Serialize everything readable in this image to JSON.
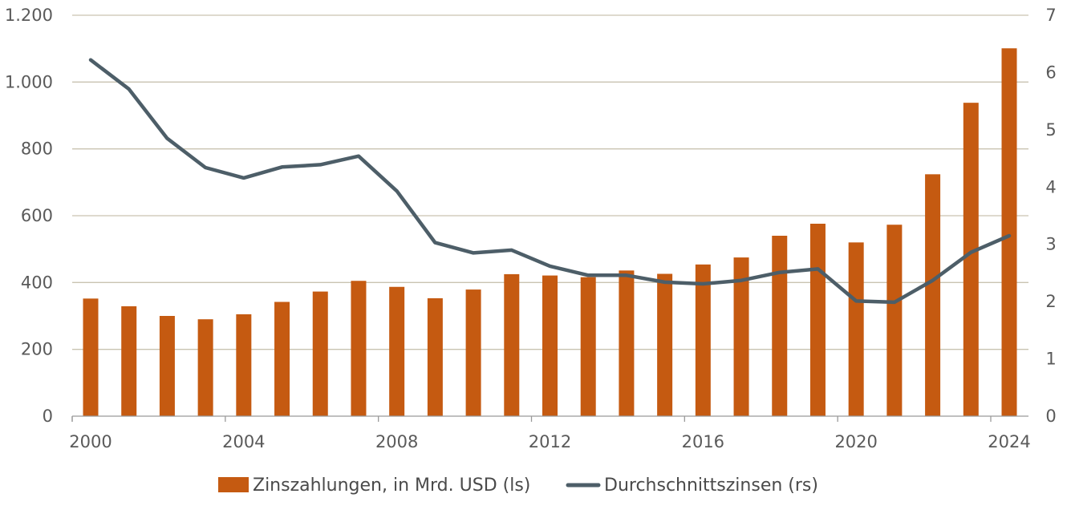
{
  "chart_data": {
    "type": "bar+line",
    "x": [
      2000,
      2001,
      2002,
      2003,
      2004,
      2005,
      2006,
      2007,
      2008,
      2009,
      2010,
      2011,
      2012,
      2013,
      2014,
      2015,
      2016,
      2017,
      2018,
      2019,
      2020,
      2021,
      2022,
      2023,
      2024
    ],
    "x_tick_labels": [
      "2000",
      "2004",
      "2008",
      "2012",
      "2016",
      "2020",
      "2024"
    ],
    "x_tick_values": [
      2000,
      2004,
      2008,
      2012,
      2016,
      2020,
      2024
    ],
    "y_left_tick_labels": [
      "0",
      "200",
      "400",
      "600",
      "800",
      "1.000",
      "1.200"
    ],
    "y_left_tick_values": [
      0,
      200,
      400,
      600,
      800,
      1000,
      1200
    ],
    "y_left_lim": [
      0,
      1200
    ],
    "y_right_tick_labels": [
      "0",
      "1",
      "2",
      "3",
      "4",
      "5",
      "6",
      "7"
    ],
    "y_right_tick_values": [
      0,
      1,
      2,
      3,
      4,
      5,
      6,
      7
    ],
    "y_right_lim": [
      0,
      7
    ],
    "grid": true,
    "legend_position": "bottom",
    "series": [
      {
        "name": "Zinszahlungen, in Mrd. USD (ls)",
        "type": "bar",
        "axis": "left",
        "color": "#c55a11",
        "values": [
          352,
          329,
          300,
          290,
          305,
          342,
          373,
          405,
          387,
          353,
          379,
          425,
          421,
          416,
          436,
          426,
          454,
          475,
          540,
          576,
          520,
          573,
          724,
          938,
          1101
        ]
      },
      {
        "name": "Durchschnittszinsen (rs)",
        "type": "line",
        "axis": "right",
        "color": "#4d5e68",
        "values": [
          6.22,
          5.71,
          4.85,
          4.34,
          4.16,
          4.35,
          4.39,
          4.54,
          3.93,
          3.03,
          2.85,
          2.9,
          2.62,
          2.46,
          2.46,
          2.34,
          2.31,
          2.37,
          2.51,
          2.57,
          2.01,
          1.99,
          2.37,
          2.86,
          3.15
        ]
      }
    ]
  }
}
